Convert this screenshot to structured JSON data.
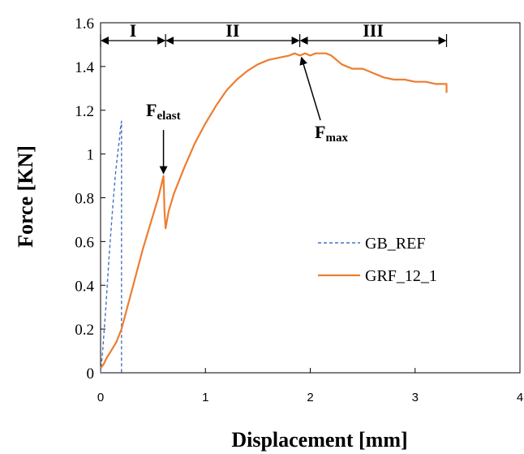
{
  "chart_data": {
    "type": "line",
    "xlabel": "Displacement [mm]",
    "ylabel": "Force [KN]",
    "xlim": [
      0,
      4
    ],
    "ylim": [
      0,
      1.6
    ],
    "x_ticks": [
      "0",
      "1",
      "2",
      "3",
      "4"
    ],
    "y_ticks": [
      "0",
      "0.2",
      "0.4",
      "0.6",
      "0.8",
      "1",
      "1.2",
      "1.4",
      "1.6"
    ],
    "grid": false,
    "legend_position": "center-right",
    "series": [
      {
        "name": "GB_REF",
        "style": "dashed",
        "color": "#4472c4",
        "x": [
          0,
          0.02,
          0.05,
          0.08,
          0.11,
          0.14,
          0.16,
          0.18,
          0.19,
          0.2,
          0.2
        ],
        "y": [
          0,
          0.1,
          0.3,
          0.52,
          0.72,
          0.9,
          0.99,
          1.07,
          1.12,
          1.15,
          0
        ]
      },
      {
        "name": "GRF_12_1",
        "style": "solid",
        "color": "#ed7d31",
        "x": [
          0,
          0.03,
          0.06,
          0.1,
          0.15,
          0.2,
          0.3,
          0.4,
          0.5,
          0.55,
          0.6,
          0.61,
          0.62,
          0.65,
          0.7,
          0.8,
          0.9,
          1.0,
          1.1,
          1.2,
          1.3,
          1.4,
          1.5,
          1.6,
          1.7,
          1.8,
          1.85,
          1.9,
          1.95,
          2.0,
          2.05,
          2.1,
          2.15,
          2.2,
          2.3,
          2.4,
          2.5,
          2.6,
          2.7,
          2.8,
          2.9,
          3.0,
          3.1,
          3.2,
          3.25,
          3.3,
          3.3
        ],
        "y": [
          0.02,
          0.04,
          0.07,
          0.1,
          0.14,
          0.2,
          0.38,
          0.56,
          0.72,
          0.8,
          0.9,
          0.74,
          0.66,
          0.74,
          0.82,
          0.94,
          1.05,
          1.14,
          1.22,
          1.29,
          1.34,
          1.38,
          1.41,
          1.43,
          1.44,
          1.45,
          1.46,
          1.45,
          1.46,
          1.45,
          1.46,
          1.46,
          1.46,
          1.45,
          1.41,
          1.39,
          1.39,
          1.37,
          1.35,
          1.34,
          1.34,
          1.33,
          1.33,
          1.32,
          1.32,
          1.32,
          1.28
        ]
      }
    ],
    "regions": [
      {
        "label": "I",
        "x_start": 0,
        "x_end": 0.62
      },
      {
        "label": "II",
        "x_start": 0.62,
        "x_end": 1.9
      },
      {
        "label": "III",
        "x_start": 1.9,
        "x_end": 3.3
      }
    ],
    "annotations": [
      {
        "main": "F",
        "sub": "elast",
        "x": 0.6,
        "y": 0.9
      },
      {
        "main": "F",
        "sub": "max",
        "x": 1.9,
        "y": 1.46
      }
    ]
  }
}
